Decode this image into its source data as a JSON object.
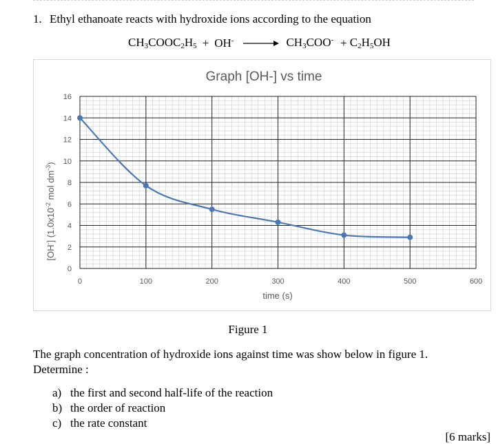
{
  "question": {
    "number": "1.",
    "text": "Ethyl ethanoate reacts with hydroxide ions according to the equation"
  },
  "equation": {
    "r1": [
      "CH",
      "3",
      "COOC",
      "2",
      "H",
      "5"
    ],
    "plus1": "+",
    "r2": "OH",
    "r2_charge": "-",
    "p1": [
      "CH",
      "3",
      "COO"
    ],
    "p1_charge": "-",
    "plus2": "+",
    "p2": [
      "C",
      "2",
      "H",
      "5",
      "OH"
    ]
  },
  "figure_caption": "Figure 1",
  "paragraph": {
    "line1": "The graph concentration of hydroxide ions against time was show below in figure 1.",
    "line2": "Determine :"
  },
  "tasks": [
    {
      "label": "a)",
      "text": "the first and second half-life of the reaction"
    },
    {
      "label": "b)",
      "text": "the order of reaction"
    },
    {
      "label": "c)",
      "text": "the rate constant"
    }
  ],
  "marks": "[6 marks]",
  "chart_data": {
    "type": "line",
    "title": "Graph [OH-] vs time",
    "xlabel": "time (s)",
    "ylabel_parts": [
      "[OH",
      "-",
      "] (1.0x10",
      "-2",
      " mol dm",
      "-3",
      ")"
    ],
    "x": [
      0,
      100,
      200,
      300,
      400,
      500
    ],
    "y": [
      14,
      7.7,
      5.5,
      4.3,
      3.1,
      2.9
    ],
    "xlim": [
      0,
      600
    ],
    "ylim": [
      0,
      16
    ],
    "x_ticks": [
      0,
      100,
      200,
      300,
      400,
      500,
      600
    ],
    "y_ticks": [
      0,
      2,
      4,
      6,
      8,
      10,
      12,
      14,
      16
    ],
    "grid": true,
    "line_color": "#4a78b5"
  }
}
